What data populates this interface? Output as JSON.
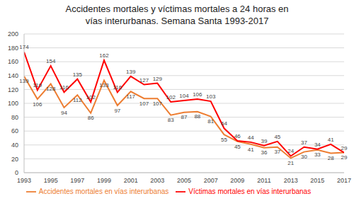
{
  "chart_data": {
    "type": "line",
    "title": "Accidentes mortales y víctimas mortales a 24 horas en vías interurbanas. Semana Santa 1993-2017",
    "x": [
      1993,
      1994,
      1995,
      1996,
      1997,
      1998,
      1999,
      2000,
      2001,
      2002,
      2003,
      2004,
      2005,
      2006,
      2007,
      2008,
      2009,
      2010,
      2011,
      2012,
      2013,
      2014,
      2015,
      2016,
      2017
    ],
    "series": [
      {
        "name": "Accidentes mortales en vías interurbanas",
        "color": "#ed7d31",
        "values": [
          139,
          106,
          128,
          94,
          112,
          86,
          133,
          97,
          117,
          107,
          107,
          83,
          87,
          88,
          81,
          55,
          45,
          41,
          36,
          37,
          21,
          30,
          33,
          28,
          29
        ]
      },
      {
        "name": "Víctimas mortales en vías interurbanas",
        "color": "#ff0000",
        "values": [
          174,
          119,
          154,
          116,
          135,
          102,
          162,
          116,
          139,
          127,
          129,
          102,
          104,
          106,
          103,
          64,
          46,
          44,
          39,
          45,
          24,
          37,
          34,
          41,
          29
        ]
      }
    ],
    "xlim": [
      1993,
      2017
    ],
    "xticks": [
      1993,
      1995,
      1997,
      1999,
      2001,
      2003,
      2005,
      2007,
      2009,
      2011,
      2013,
      2015,
      2017
    ],
    "ylim": [
      0,
      200
    ],
    "yticks": [
      0,
      20,
      40,
      60,
      80,
      100,
      120,
      140,
      160,
      180,
      200
    ],
    "grid": true,
    "legend": "bottom",
    "data_labels": true
  }
}
